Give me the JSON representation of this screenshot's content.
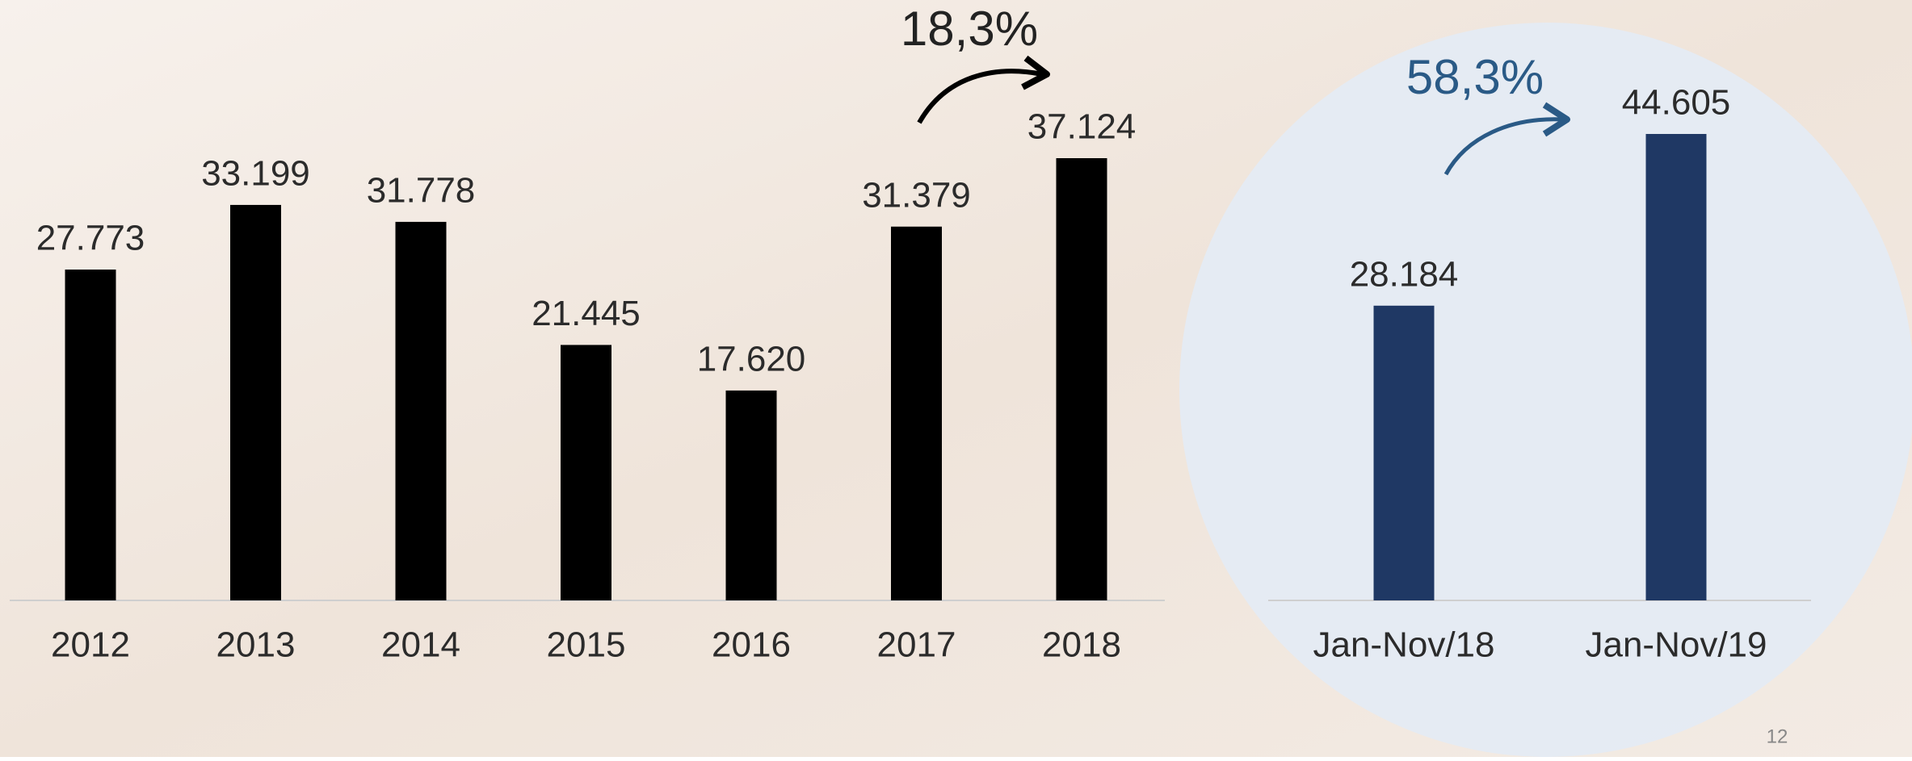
{
  "chart_data": [
    {
      "type": "bar",
      "annotation": "18,3%",
      "categories": [
        "2012",
        "2013",
        "2014",
        "2015",
        "2016",
        "2017",
        "2018"
      ],
      "values": [
        27773,
        33199,
        31778,
        21445,
        17620,
        31379,
        37124
      ],
      "value_labels": [
        "27.773",
        "33.199",
        "31.778",
        "21.445",
        "17.620",
        "31.379",
        "37.124"
      ],
      "color": "#000000"
    },
    {
      "type": "bar",
      "annotation": "58,3%",
      "categories": [
        "Jan-Nov/18",
        "Jan-Nov/19"
      ],
      "values": [
        28184,
        44605
      ],
      "value_labels": [
        "28.184",
        "44.605"
      ],
      "color": "#1f3864"
    }
  ],
  "page_number": "12"
}
